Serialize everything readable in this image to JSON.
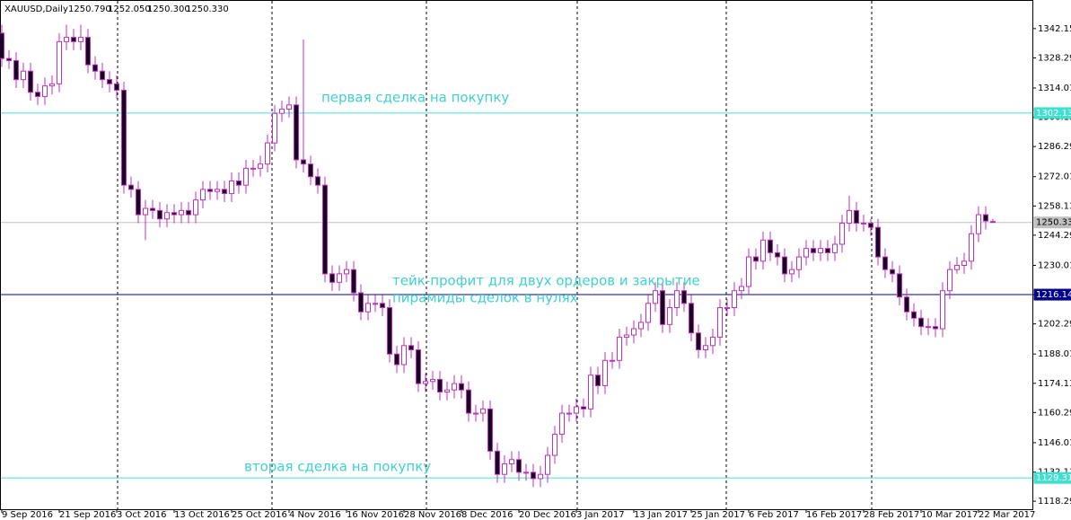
{
  "chart_data": {
    "type": "candlestick",
    "title": "XAUUSD,Daily",
    "header_values": [
      "1250.790",
      "1252.050",
      "1250.300",
      "1250.330"
    ],
    "up_color": "#ffffff",
    "down_color": "#1a0022",
    "wick_color": "#c030c0",
    "ohlc": [
      [
        1340,
        1344,
        1324,
        1328
      ],
      [
        1328,
        1332,
        1323,
        1327
      ],
      [
        1327,
        1331,
        1314,
        1318
      ],
      [
        1318,
        1326,
        1314,
        1322
      ],
      [
        1322,
        1326,
        1308,
        1312
      ],
      [
        1312,
        1316,
        1306,
        1310
      ],
      [
        1310,
        1319,
        1306,
        1315
      ],
      [
        1315,
        1320,
        1311,
        1316
      ],
      [
        1316,
        1340,
        1312,
        1336
      ],
      [
        1336,
        1344,
        1332,
        1338
      ],
      [
        1338,
        1342,
        1332,
        1336
      ],
      [
        1336,
        1344,
        1332,
        1338
      ],
      [
        1338,
        1342,
        1321,
        1325
      ],
      [
        1325,
        1329,
        1318,
        1322
      ],
      [
        1322,
        1326,
        1314,
        1318
      ],
      [
        1318,
        1322,
        1312,
        1316
      ],
      [
        1316,
        1320,
        1309,
        1313
      ],
      [
        1313,
        1317,
        1264,
        1268
      ],
      [
        1268,
        1272,
        1262,
        1266
      ],
      [
        1266,
        1270,
        1250,
        1254
      ],
      [
        1254,
        1261,
        1242,
        1257
      ],
      [
        1257,
        1261,
        1252,
        1256
      ],
      [
        1256,
        1260,
        1248,
        1252
      ],
      [
        1252,
        1259,
        1248,
        1255
      ],
      [
        1255,
        1259,
        1250,
        1254
      ],
      [
        1254,
        1260,
        1250,
        1256
      ],
      [
        1256,
        1260,
        1250,
        1254
      ],
      [
        1254,
        1265,
        1250,
        1261
      ],
      [
        1261,
        1270,
        1257,
        1266
      ],
      [
        1266,
        1270,
        1261,
        1265
      ],
      [
        1265,
        1270,
        1261,
        1266
      ],
      [
        1266,
        1270,
        1260,
        1264
      ],
      [
        1264,
        1274,
        1260,
        1270
      ],
      [
        1270,
        1274,
        1264,
        1268
      ],
      [
        1268,
        1280,
        1264,
        1276
      ],
      [
        1276,
        1280,
        1272,
        1276
      ],
      [
        1276,
        1282,
        1272,
        1278
      ],
      [
        1278,
        1292,
        1274,
        1288
      ],
      [
        1288,
        1306,
        1284,
        1302
      ],
      [
        1302,
        1308,
        1298,
        1304
      ],
      [
        1304,
        1310,
        1300,
        1306
      ],
      [
        1306,
        1310,
        1276,
        1280
      ],
      [
        1280,
        1337,
        1274,
        1278
      ],
      [
        1278,
        1282,
        1268,
        1272
      ],
      [
        1272,
        1276,
        1264,
        1268
      ],
      [
        1268,
        1272,
        1222,
        1226
      ],
      [
        1226,
        1230,
        1218,
        1222
      ],
      [
        1222,
        1230,
        1218,
        1226
      ],
      [
        1226,
        1232,
        1222,
        1228
      ],
      [
        1228,
        1232,
        1213,
        1217
      ],
      [
        1217,
        1221,
        1204,
        1208
      ],
      [
        1208,
        1216,
        1204,
        1212
      ],
      [
        1212,
        1216,
        1208,
        1212
      ],
      [
        1212,
        1216,
        1206,
        1210
      ],
      [
        1210,
        1214,
        1184,
        1188
      ],
      [
        1188,
        1192,
        1179,
        1183
      ],
      [
        1183,
        1196,
        1179,
        1192
      ],
      [
        1192,
        1196,
        1186,
        1190
      ],
      [
        1190,
        1194,
        1170,
        1174
      ],
      [
        1174,
        1179,
        1170,
        1175
      ],
      [
        1175,
        1180,
        1171,
        1176
      ],
      [
        1176,
        1180,
        1166,
        1170
      ],
      [
        1170,
        1175,
        1166,
        1171
      ],
      [
        1171,
        1178,
        1167,
        1174
      ],
      [
        1174,
        1178,
        1167,
        1171
      ],
      [
        1171,
        1175,
        1156,
        1160
      ],
      [
        1160,
        1164,
        1156,
        1160
      ],
      [
        1160,
        1166,
        1156,
        1162
      ],
      [
        1162,
        1166,
        1138,
        1142
      ],
      [
        1142,
        1146,
        1127,
        1131
      ],
      [
        1131,
        1140,
        1127,
        1136
      ],
      [
        1136,
        1142,
        1132,
        1138
      ],
      [
        1138,
        1142,
        1128,
        1132
      ],
      [
        1132,
        1136,
        1128,
        1132
      ],
      [
        1132,
        1136,
        1125,
        1129
      ],
      [
        1129,
        1135,
        1125,
        1131
      ],
      [
        1131,
        1144,
        1127,
        1140
      ],
      [
        1140,
        1154,
        1136,
        1150
      ],
      [
        1150,
        1164,
        1146,
        1160
      ],
      [
        1160,
        1164,
        1156,
        1160
      ],
      [
        1160,
        1167,
        1156,
        1163
      ],
      [
        1163,
        1167,
        1158,
        1162
      ],
      [
        1162,
        1182,
        1158,
        1178
      ],
      [
        1178,
        1182,
        1169,
        1173
      ],
      [
        1173,
        1189,
        1169,
        1185
      ],
      [
        1185,
        1189,
        1181,
        1185
      ],
      [
        1185,
        1200,
        1181,
        1196
      ],
      [
        1196,
        1201,
        1192,
        1197
      ],
      [
        1197,
        1204,
        1193,
        1200
      ],
      [
        1200,
        1207,
        1196,
        1203
      ],
      [
        1203,
        1216,
        1199,
        1212
      ],
      [
        1212,
        1222,
        1208,
        1218
      ],
      [
        1218,
        1222,
        1198,
        1202
      ],
      [
        1202,
        1214,
        1198,
        1210
      ],
      [
        1210,
        1222,
        1206,
        1218
      ],
      [
        1218,
        1222,
        1208,
        1212
      ],
      [
        1212,
        1216,
        1194,
        1198
      ],
      [
        1198,
        1202,
        1186,
        1190
      ],
      [
        1190,
        1196,
        1186,
        1192
      ],
      [
        1192,
        1200,
        1188,
        1196
      ],
      [
        1196,
        1214,
        1192,
        1210
      ],
      [
        1210,
        1214,
        1206,
        1210
      ],
      [
        1210,
        1222,
        1206,
        1218
      ],
      [
        1218,
        1224,
        1214,
        1220
      ],
      [
        1220,
        1238,
        1216,
        1234
      ],
      [
        1234,
        1238,
        1228,
        1232
      ],
      [
        1232,
        1246,
        1228,
        1242
      ],
      [
        1242,
        1246,
        1232,
        1236
      ],
      [
        1236,
        1240,
        1230,
        1234
      ],
      [
        1234,
        1238,
        1222,
        1226
      ],
      [
        1226,
        1232,
        1222,
        1228
      ],
      [
        1228,
        1238,
        1224,
        1234
      ],
      [
        1234,
        1242,
        1230,
        1238
      ],
      [
        1238,
        1242,
        1232,
        1236
      ],
      [
        1236,
        1242,
        1232,
        1238
      ],
      [
        1238,
        1242,
        1232,
        1236
      ],
      [
        1236,
        1244,
        1232,
        1240
      ],
      [
        1240,
        1254,
        1236,
        1250
      ],
      [
        1250,
        1263,
        1246,
        1256
      ],
      [
        1256,
        1260,
        1246,
        1250
      ],
      [
        1250,
        1254,
        1246,
        1250
      ],
      [
        1250,
        1252,
        1244,
        1248
      ],
      [
        1248,
        1252,
        1230,
        1234
      ],
      [
        1234,
        1238,
        1224,
        1228
      ],
      [
        1228,
        1232,
        1222,
        1226
      ],
      [
        1226,
        1230,
        1211,
        1215
      ],
      [
        1215,
        1219,
        1204,
        1208
      ],
      [
        1208,
        1212,
        1201,
        1205
      ],
      [
        1205,
        1209,
        1197,
        1201
      ],
      [
        1201,
        1205,
        1197,
        1201
      ],
      [
        1201,
        1205,
        1196,
        1200
      ],
      [
        1200,
        1222,
        1196,
        1218
      ],
      [
        1218,
        1232,
        1214,
        1228
      ],
      [
        1228,
        1234,
        1226,
        1230
      ],
      [
        1230,
        1236,
        1226,
        1232
      ],
      [
        1232,
        1249,
        1228,
        1245
      ],
      [
        1245,
        1258,
        1241,
        1254
      ],
      [
        1254,
        1258,
        1247,
        1251
      ],
      [
        1250.79,
        1252.05,
        1250.3,
        1250.33
      ]
    ],
    "xlim": [
      -0.25,
      143.5
    ],
    "xticks": [
      {
        "value": 0,
        "label": "9 Sep 2016"
      },
      {
        "value": 8,
        "label": "21 Sep 2016"
      },
      {
        "value": 16,
        "label": "3 Oct 2016"
      },
      {
        "value": 24,
        "label": "13 Oct 2016"
      },
      {
        "value": 32,
        "label": "25 Oct 2016"
      },
      {
        "value": 40,
        "label": "4 Nov 2016"
      },
      {
        "value": 48,
        "label": "16 Nov 2016"
      },
      {
        "value": 56,
        "label": "28 Nov 2016"
      },
      {
        "value": 64,
        "label": "8 Dec 2016"
      },
      {
        "value": 72,
        "label": "20 Dec 2016"
      },
      {
        "value": 80,
        "label": "3 Jan 2017"
      },
      {
        "value": 88,
        "label": "13 Jan 2017"
      },
      {
        "value": 96,
        "label": "25 Jan 2017"
      },
      {
        "value": 104,
        "label": "6 Feb 2017"
      },
      {
        "value": 112,
        "label": "16 Feb 2017"
      },
      {
        "value": 120,
        "label": "28 Feb 2017"
      },
      {
        "value": 128,
        "label": "10 Mar 2017"
      },
      {
        "value": 136,
        "label": "22 Mar 2017"
      }
    ],
    "ylim": [
      1114.5,
      1355.7
    ],
    "yticks": [
      {
        "value": 1342.15,
        "label": "1342.150"
      },
      {
        "value": 1328.29,
        "label": "1328.290"
      },
      {
        "value": 1314.01,
        "label": "1314.010"
      },
      {
        "value": 1300.13,
        "label": "1300.130"
      },
      {
        "value": 1286.29,
        "label": "1286.290"
      },
      {
        "value": 1272.01,
        "label": "1272.010"
      },
      {
        "value": 1258.13,
        "label": "1258.130"
      },
      {
        "value": 1244.29,
        "label": "1244.290"
      },
      {
        "value": 1230.01,
        "label": "1230.010"
      },
      {
        "value": 1216.13,
        "label": "1216.130"
      },
      {
        "value": 1202.29,
        "label": "1202.290"
      },
      {
        "value": 1188.01,
        "label": "1188.010"
      },
      {
        "value": 1174.13,
        "label": "1174.130"
      },
      {
        "value": 1160.29,
        "label": "1160.290"
      },
      {
        "value": 1146.01,
        "label": "1146.010"
      },
      {
        "value": 1132.13,
        "label": "1132.130"
      },
      {
        "value": 1118.29,
        "label": "1118.290"
      }
    ],
    "hlines": [
      {
        "value": 1302.13,
        "label": "1302.130",
        "color": "#40e0d0",
        "text_color": "#ffffff"
      },
      {
        "value": 1250.33,
        "label": "1250.330",
        "color": "#c0c0c0",
        "text_color": "#000000"
      },
      {
        "value": 1216.144,
        "label": "1216.144",
        "color": "#00008b",
        "text_color": "#ffffff"
      },
      {
        "value": 1129.31,
        "label": "1129.310",
        "color": "#40e0d0",
        "text_color": "#ffffff"
      }
    ],
    "annotations": [
      "первая сделка на покупку",
      "тейк-профит для двух ордеров и закрытие",
      "пирамиды сделок в нулях",
      "вторая сделка на покупку"
    ],
    "annotation_color": "#40d0d0"
  }
}
